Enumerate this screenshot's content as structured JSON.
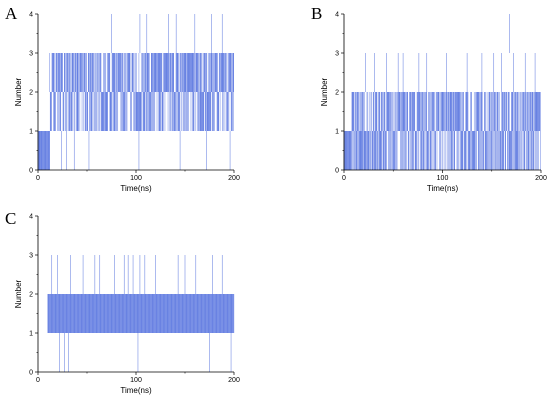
{
  "chart_data": [
    {
      "panel_letter": "A",
      "type": "line",
      "xlabel": "Time(ns)",
      "ylabel": "Number",
      "xlim": [
        0,
        200
      ],
      "ylim": [
        0,
        4
      ],
      "x_ticks": [
        "0",
        "100",
        "200"
      ],
      "y_ticks": [
        "0",
        "1",
        "2",
        "3",
        "4"
      ],
      "color": "#3a5bd9",
      "series": [
        {
          "segments": [
            {
              "x_range": [
                0,
                2
              ],
              "min": 0,
              "max": 1
            },
            {
              "x_range": [
                2,
                12
              ],
              "min": 0,
              "max": 1
            },
            {
              "x_range": [
                12,
                40
              ],
              "min": 1,
              "max": 3
            },
            {
              "x_range": [
                40,
                200
              ],
              "min": 1,
              "max": 3
            }
          ],
          "spikes_to_4": [
            75,
            104,
            111,
            133,
            141,
            160,
            177,
            188
          ],
          "dips_to_0": [
            24,
            29,
            37,
            52,
            103,
            145,
            172,
            196
          ]
        }
      ]
    },
    {
      "panel_letter": "B",
      "type": "line",
      "xlabel": "Time(ns)",
      "ylabel": "Number",
      "xlim": [
        0,
        200
      ],
      "ylim": [
        0,
        4
      ],
      "x_ticks": [
        "0",
        "100",
        "200"
      ],
      "y_ticks": [
        "0",
        "1",
        "2",
        "3",
        "4"
      ],
      "color": "#3a5bd9",
      "series": [
        {
          "segments": [
            {
              "x_range": [
                0,
                8
              ],
              "min": 0,
              "max": 1
            },
            {
              "x_range": [
                8,
                200
              ],
              "min": 0,
              "max": 2
            }
          ],
          "spikes_to_3": [
            22,
            31,
            43,
            55,
            60,
            76,
            84,
            104,
            125,
            140,
            152,
            160,
            172,
            184,
            194
          ],
          "spikes_to_4": [
            168
          ]
        }
      ]
    },
    {
      "panel_letter": "C",
      "type": "line",
      "xlabel": "Time(ns)",
      "ylabel": "Number",
      "xlim": [
        0,
        200
      ],
      "ylim": [
        0,
        4
      ],
      "x_ticks": [
        "0",
        "100",
        "200"
      ],
      "y_ticks": [
        "0",
        "1",
        "2",
        "3",
        "4"
      ],
      "color": "#3a5bd9",
      "series": [
        {
          "segments": [
            {
              "x_range": [
                10,
                200
              ],
              "min": 1,
              "max": 2
            }
          ],
          "spikes_to_3": [
            14,
            20,
            33,
            46,
            58,
            63,
            78,
            88,
            92,
            97,
            104,
            109,
            120,
            143,
            150,
            161,
            178,
            188
          ],
          "dips_to_0": [
            22,
            27,
            31,
            102,
            175,
            197
          ]
        }
      ]
    }
  ]
}
